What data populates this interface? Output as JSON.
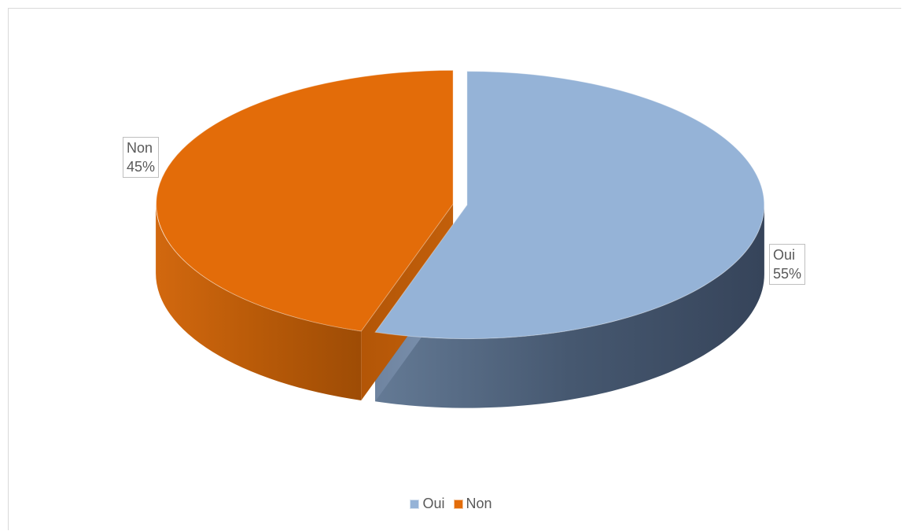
{
  "chart_data": {
    "type": "pie",
    "style": "3d-exploded",
    "categories": [
      "Oui",
      "Non"
    ],
    "values": [
      55,
      45
    ],
    "value_labels": [
      "55%",
      "45%"
    ],
    "colors": [
      "#95b3d7",
      "#e36c09"
    ],
    "legend_position": "bottom"
  }
}
